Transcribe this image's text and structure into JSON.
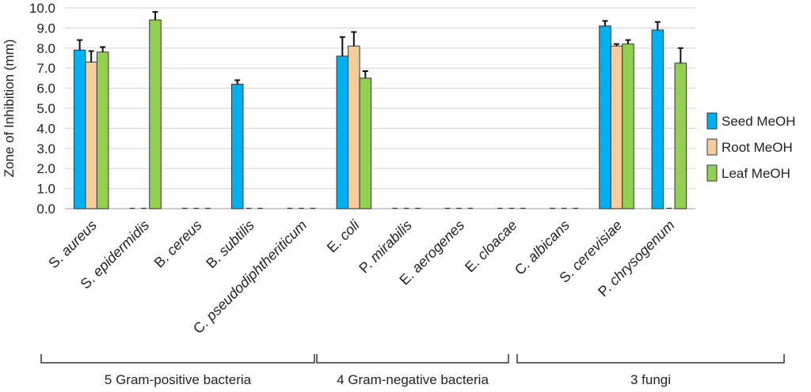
{
  "chart_data": {
    "type": "bar",
    "ylabel": "Zone of Inhibition (mm)",
    "ylim": [
      0,
      10
    ],
    "yticks": [
      "0.0",
      "1.0",
      "2.0",
      "3.0",
      "4.0",
      "5.0",
      "6.0",
      "7.0",
      "8.0",
      "9.0",
      "10.0"
    ],
    "grid": true,
    "legend_position": "right",
    "categories": [
      "S. aureus",
      "S. epidermidis",
      "B. cereus",
      "B. subtilis",
      "C. pseudodiphtheriticum",
      "E. coli",
      "P. mirabilis",
      "E. aerogenes",
      "E. cloacae",
      "C. albicans",
      "S. cerevisiae",
      "P. chrysogenum"
    ],
    "series": [
      {
        "name": "Seed MeOH",
        "color": "#00b0f0",
        "values": [
          7.9,
          0,
          0,
          6.2,
          0,
          7.6,
          0,
          0,
          0,
          0,
          9.1,
          8.9
        ],
        "errors": [
          0.5,
          0,
          0,
          0.2,
          0,
          0.95,
          0,
          0,
          0,
          0,
          0.25,
          0.4
        ]
      },
      {
        "name": "Root MeOH",
        "color": "#f5cd9c",
        "values": [
          7.3,
          0,
          0,
          0,
          0,
          8.1,
          0,
          0,
          0,
          0,
          8.1,
          0
        ],
        "errors": [
          0.55,
          0,
          0,
          0,
          0,
          0.7,
          0,
          0,
          0,
          0,
          0.1,
          0
        ]
      },
      {
        "name": "Leaf MeOH",
        "color": "#92d050",
        "values": [
          7.8,
          9.4,
          0,
          0,
          0,
          6.5,
          0,
          0,
          0,
          0,
          8.2,
          7.25
        ],
        "errors": [
          0.25,
          0.4,
          0,
          0,
          0,
          0.35,
          0,
          0,
          0,
          0,
          0.2,
          0.75
        ]
      }
    ],
    "groups": [
      {
        "label": "5 Gram-positive bacteria",
        "from": 0,
        "to": 4
      },
      {
        "label": "4 Gram-negative bacteria",
        "from": 5,
        "to": 8
      },
      {
        "label": "3 fungi",
        "from": 9,
        "to": 11
      }
    ]
  }
}
